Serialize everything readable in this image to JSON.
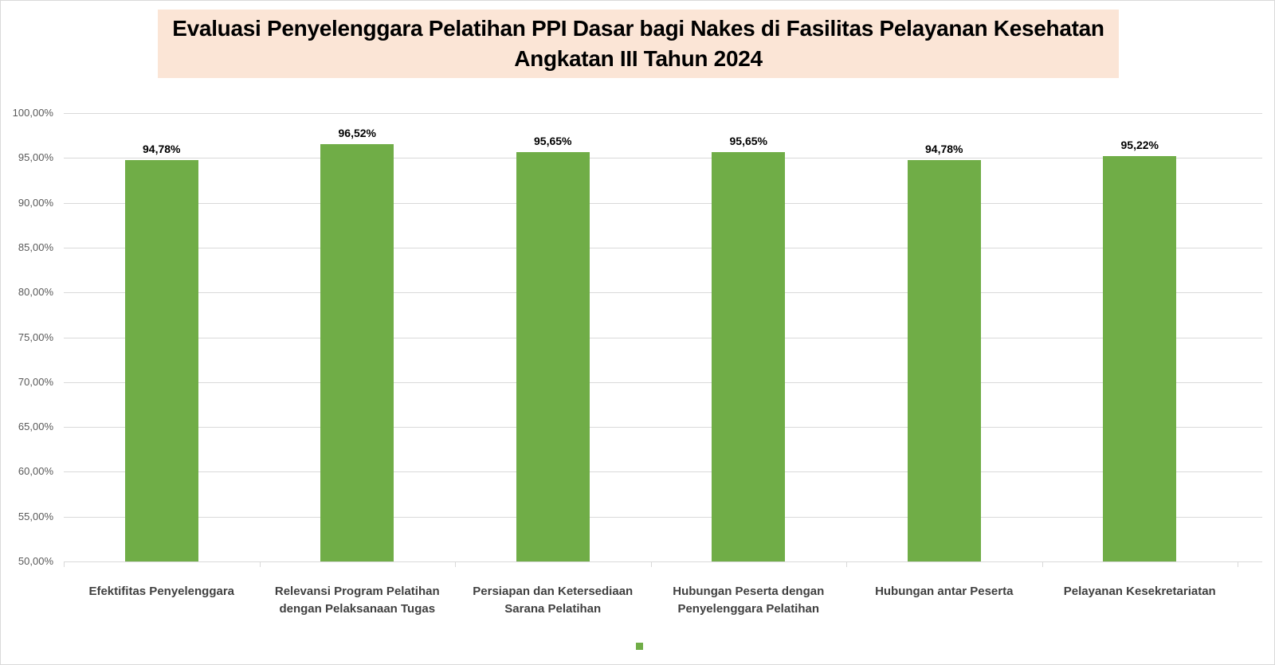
{
  "chart_data": {
    "type": "bar",
    "title": "Evaluasi Penyelenggara Pelatihan PPI Dasar bagi Nakes di Fasilitas Pelayanan Kesehatan Angkatan III Tahun 2024",
    "title_lines": [
      "Evaluasi Penyelenggara Pelatihan PPI Dasar bagi Nakes di Fasilitas Pelayanan Kesehatan",
      "Angkatan III Tahun 2024"
    ],
    "categories": [
      "Efektifitas Penyelenggara",
      "Relevansi Program Pelatihan dengan Pelaksanaan Tugas",
      "Persiapan dan Ketersediaan Sarana Pelatihan",
      "Hubungan Peserta dengan Penyelenggara Pelatihan",
      "Hubungan antar Peserta",
      "Pelayanan Kesekretariatan"
    ],
    "category_lines": [
      [
        "Efektifitas Penyelenggara"
      ],
      [
        "Relevansi Program Pelatihan",
        "dengan Pelaksanaan Tugas"
      ],
      [
        "Persiapan dan Ketersediaan",
        "Sarana Pelatihan"
      ],
      [
        "Hubungan Peserta dengan",
        "Penyelenggara Pelatihan"
      ],
      [
        "Hubungan antar Peserta"
      ],
      [
        "Pelayanan Kesekretariatan"
      ]
    ],
    "values": [
      94.78,
      96.52,
      95.65,
      95.65,
      94.78,
      95.22
    ],
    "value_labels": [
      "94,78%",
      "96,52%",
      "95,65%",
      "95,65%",
      "94,78%",
      "95,22%"
    ],
    "xlabel": "",
    "ylabel": "",
    "ylim": [
      50,
      100
    ],
    "yticks": [
      100,
      95,
      90,
      85,
      80,
      75,
      70,
      65,
      60,
      55,
      50
    ],
    "ytick_labels": [
      "100,00%",
      "95,00%",
      "90,00%",
      "85,00%",
      "80,00%",
      "75,00%",
      "70,00%",
      "65,00%",
      "60,00%",
      "55,00%",
      "50,00%"
    ],
    "grid": true,
    "legend": {
      "position": "bottom",
      "entries": [
        ""
      ]
    },
    "colors": {
      "bar": "#70ad47",
      "title_bg": "#fbe5d6",
      "grid": "#d9d9d9"
    }
  }
}
